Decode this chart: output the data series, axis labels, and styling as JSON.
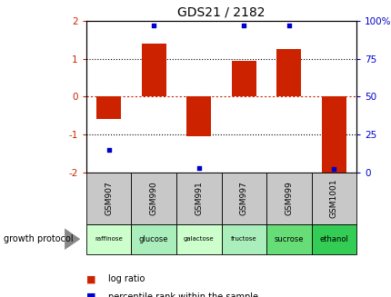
{
  "title": "GDS21 / 2182",
  "samples": [
    "GSM907",
    "GSM990",
    "GSM991",
    "GSM997",
    "GSM999",
    "GSM1001"
  ],
  "protocols": [
    "raffinose",
    "glucose",
    "galactose",
    "fructose",
    "sucrose",
    "ethanol"
  ],
  "log_ratios": [
    -0.6,
    1.4,
    -1.05,
    0.95,
    1.25,
    -2.0
  ],
  "percentile_ranks": [
    15,
    97,
    3,
    97,
    97,
    2
  ],
  "bar_color": "#cc2200",
  "dot_color": "#0000cc",
  "ylim_left": [
    -2,
    2
  ],
  "ylim_right": [
    0,
    100
  ],
  "yticks_left": [
    -2,
    -1,
    0,
    1,
    2
  ],
  "ytick_labels_left": [
    "-2",
    "-1",
    "0",
    "1",
    "2"
  ],
  "yticks_right": [
    0,
    25,
    50,
    75,
    100
  ],
  "ytick_labels_right": [
    "0",
    "25",
    "50",
    "75",
    "100%"
  ],
  "protocol_colors": [
    "#ccffcc",
    "#aaeebb",
    "#ccffcc",
    "#aaeebb",
    "#66dd77",
    "#33cc55"
  ],
  "growth_protocol_label": "growth protocol",
  "legend_items": [
    {
      "label": "log ratio",
      "color": "#cc2200"
    },
    {
      "label": "percentile rank within the sample",
      "color": "#0000cc"
    }
  ],
  "title_fontsize": 10,
  "tick_fontsize": 7.5,
  "label_fontsize": 7.5
}
